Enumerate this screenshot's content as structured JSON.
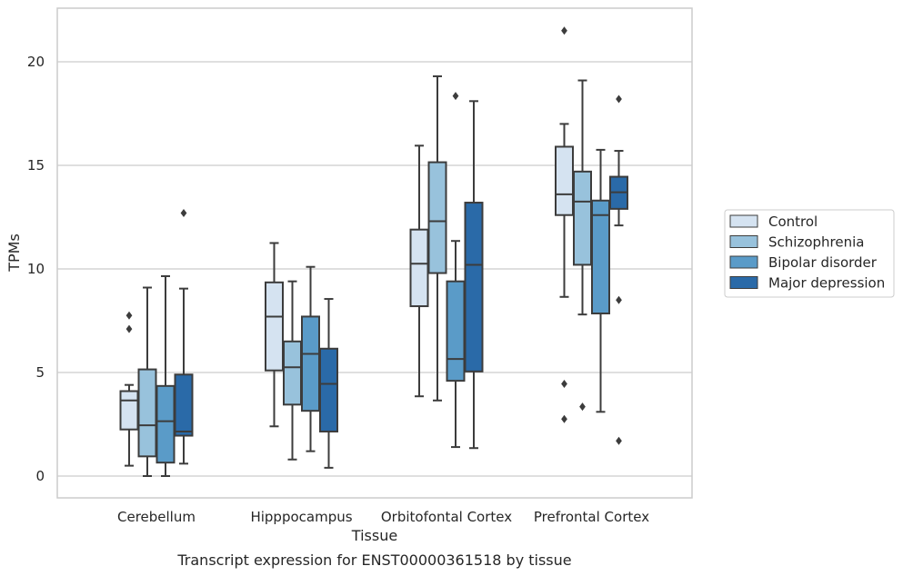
{
  "chart_data": {
    "type": "boxplot",
    "title": "",
    "caption": "Transcript expression for ENST00000361518 by tissue",
    "xlabel": "Tissue",
    "ylabel": "TPMs",
    "ylim": [
      -1,
      22.6
    ],
    "yticks": [
      0,
      5,
      10,
      15,
      20
    ],
    "grid": "horizontal",
    "legend_position": "right",
    "categories": [
      "Cerebellum",
      "Hipppocampus",
      "Orbitofontal Cortex",
      "Prefrontal Cortex"
    ],
    "series": [
      {
        "name": "Control",
        "color": "#d5e3f1",
        "boxes": [
          {
            "whislo": 0.5,
            "q1": 2.25,
            "med": 3.65,
            "q3": 4.1,
            "whishi": 4.4,
            "fliers": [
              7.1,
              7.75
            ]
          },
          {
            "whislo": 2.4,
            "q1": 5.1,
            "med": 7.7,
            "q3": 9.35,
            "whishi": 11.25,
            "fliers": []
          },
          {
            "whislo": 3.85,
            "q1": 8.2,
            "med": 10.25,
            "q3": 11.9,
            "whishi": 15.95,
            "fliers": []
          },
          {
            "whislo": 8.65,
            "q1": 12.6,
            "med": 13.6,
            "q3": 15.9,
            "whishi": 17.0,
            "fliers": [
              2.75,
              4.45,
              21.5
            ]
          }
        ]
      },
      {
        "name": "Schizophrenia",
        "color": "#98c2dc",
        "boxes": [
          {
            "whislo": 0.0,
            "q1": 0.95,
            "med": 2.45,
            "q3": 5.15,
            "whishi": 9.1,
            "fliers": []
          },
          {
            "whislo": 0.8,
            "q1": 3.45,
            "med": 5.25,
            "q3": 6.5,
            "whishi": 9.4,
            "fliers": []
          },
          {
            "whislo": 3.65,
            "q1": 9.8,
            "med": 12.3,
            "q3": 15.15,
            "whishi": 19.3,
            "fliers": []
          },
          {
            "whislo": 7.8,
            "q1": 10.2,
            "med": 13.25,
            "q3": 14.7,
            "whishi": 19.1,
            "fliers": [
              3.35
            ]
          }
        ]
      },
      {
        "name": "Bipolar disorder",
        "color": "#5a9bc8",
        "boxes": [
          {
            "whislo": 0.0,
            "q1": 0.65,
            "med": 2.65,
            "q3": 4.35,
            "whishi": 9.65,
            "fliers": []
          },
          {
            "whislo": 1.2,
            "q1": 3.15,
            "med": 5.9,
            "q3": 7.7,
            "whishi": 10.1,
            "fliers": []
          },
          {
            "whislo": 1.4,
            "q1": 4.6,
            "med": 5.65,
            "q3": 9.4,
            "whishi": 11.35,
            "fliers": [
              18.35
            ]
          },
          {
            "whislo": 3.1,
            "q1": 7.85,
            "med": 12.6,
            "q3": 13.3,
            "whishi": 15.75,
            "fliers": []
          }
        ]
      },
      {
        "name": "Major depression",
        "color": "#2a6aa8",
        "boxes": [
          {
            "whislo": 0.6,
            "q1": 1.95,
            "med": 2.15,
            "q3": 4.9,
            "whishi": 9.05,
            "fliers": [
              12.7
            ]
          },
          {
            "whislo": 0.4,
            "q1": 2.15,
            "med": 4.45,
            "q3": 6.15,
            "whishi": 8.55,
            "fliers": []
          },
          {
            "whislo": 1.35,
            "q1": 5.05,
            "med": 10.2,
            "q3": 13.2,
            "whishi": 18.1,
            "fliers": []
          },
          {
            "whislo": 12.1,
            "q1": 12.9,
            "med": 13.7,
            "q3": 14.45,
            "whishi": 15.7,
            "fliers": [
              1.7,
              8.5,
              18.2
            ]
          }
        ]
      }
    ]
  }
}
